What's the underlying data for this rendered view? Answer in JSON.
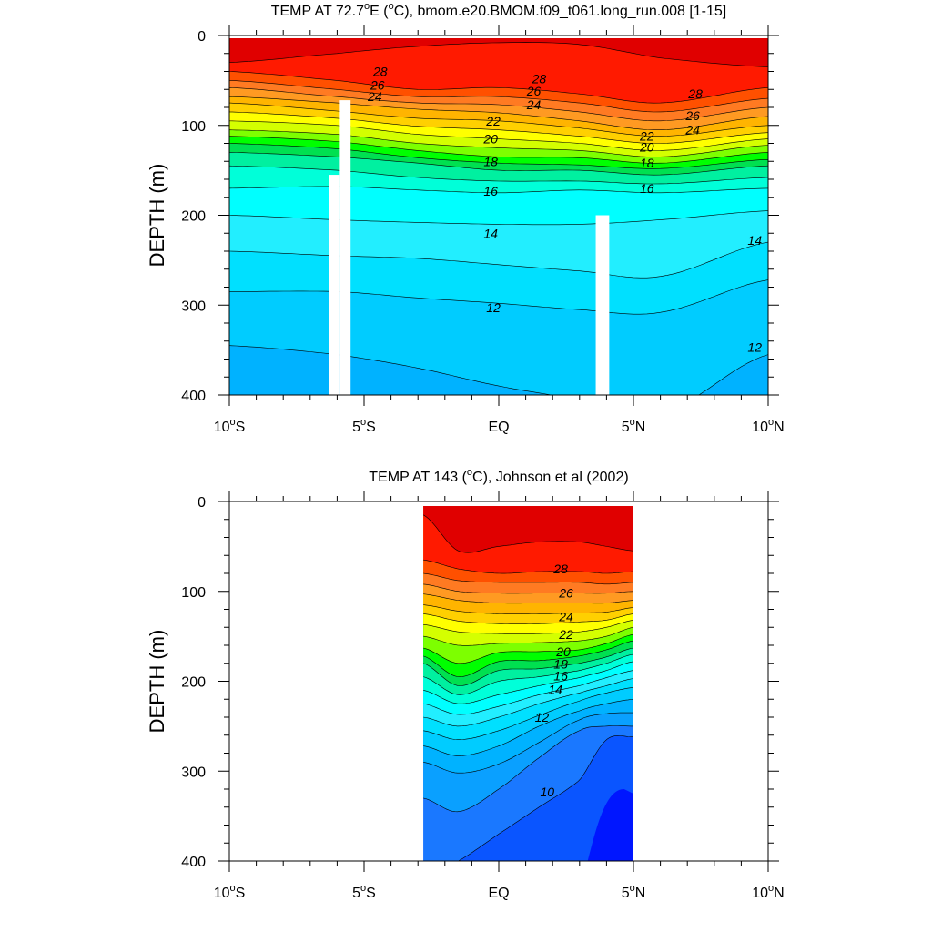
{
  "chart_data": [
    {
      "type": "contour",
      "title_main": "TEMP AT  72.7",
      "title_deg": "o",
      "title_rest": "E (",
      "title_unit_deg": "o",
      "title_tail": "C), bmom.e20.BMOM.f09_t061.long_run.008 [1-15]",
      "ylabel": "DEPTH (m)",
      "xlim": [
        -10,
        10
      ],
      "ylim": [
        400,
        0
      ],
      "x_ticks": [
        {
          "value": -10,
          "num": "10",
          "hemi": "S"
        },
        {
          "value": -5,
          "num": "5",
          "hemi": "S"
        },
        {
          "value": 0,
          "num": "EQ",
          "hemi": ""
        },
        {
          "value": 5,
          "num": "5",
          "hemi": "N"
        },
        {
          "value": 10,
          "num": "10",
          "hemi": "N"
        }
      ],
      "y_ticks": [
        "0",
        "100",
        "200",
        "300",
        "400"
      ],
      "y_tick_values": [
        0,
        100,
        200,
        300,
        400
      ],
      "data_extent_lat": [
        -10,
        10
      ],
      "masked_columns": [
        {
          "lat_range": [
            -6.3,
            -5.9
          ],
          "depth_from": 155
        },
        {
          "lat_range": [
            -5.9,
            -5.5
          ],
          "depth_from": 72
        },
        {
          "lat_range": [
            3.6,
            4.1
          ],
          "depth_from": 200
        }
      ],
      "x_knots": [
        -10,
        -6,
        -3,
        0,
        3,
        6,
        10
      ],
      "contour_levels": [
        11,
        12,
        13,
        14,
        15,
        16,
        17,
        18,
        19,
        20,
        21,
        22,
        23,
        24,
        25,
        26,
        27,
        28,
        29
      ],
      "isotherm_depths": {
        "29": [
          30,
          20,
          12,
          8,
          10,
          25,
          35
        ],
        "28": [
          40,
          50,
          60,
          58,
          65,
          75,
          58
        ],
        "27": [
          50,
          60,
          68,
          68,
          75,
          85,
          70
        ],
        "26": [
          58,
          68,
          75,
          77,
          85,
          95,
          80
        ],
        "25": [
          68,
          75,
          82,
          86,
          95,
          105,
          90
        ],
        "24": [
          75,
          84,
          92,
          95,
          103,
          112,
          100
        ],
        "23": [
          85,
          92,
          101,
          105,
          112,
          120,
          108
        ],
        "22": [
          95,
          100,
          110,
          115,
          120,
          128,
          115
        ],
        "21": [
          105,
          110,
          120,
          125,
          128,
          135,
          122
        ],
        "20": [
          112,
          118,
          128,
          135,
          136,
          142,
          130
        ],
        "19": [
          120,
          126,
          136,
          142,
          144,
          148,
          138
        ],
        "18": [
          130,
          135,
          142,
          150,
          150,
          155,
          145
        ],
        "17": [
          145,
          150,
          158,
          162,
          162,
          165,
          158
        ],
        "16": [
          170,
          168,
          172,
          175,
          172,
          175,
          170
        ],
        "15": [
          200,
          205,
          208,
          210,
          210,
          205,
          195
        ],
        "14": [
          240,
          245,
          248,
          255,
          262,
          268,
          230
        ],
        "13": [
          285,
          285,
          292,
          298,
          305,
          308,
          272
        ],
        "12": [
          345,
          355,
          370,
          390,
          405,
          420,
          355
        ],
        "11": [
          410,
          420,
          440,
          460,
          470,
          480,
          440
        ]
      },
      "line_labels": [
        {
          "level": "28",
          "lat": -4.4,
          "depth": 40
        },
        {
          "level": "26",
          "lat": -4.5,
          "depth": 55
        },
        {
          "level": "24",
          "lat": -4.6,
          "depth": 68
        },
        {
          "level": "28",
          "lat": 1.5,
          "depth": 48
        },
        {
          "level": "26",
          "lat": 1.3,
          "depth": 62
        },
        {
          "level": "24",
          "lat": 1.3,
          "depth": 77
        },
        {
          "level": "22",
          "lat": -0.2,
          "depth": 95
        },
        {
          "level": "20",
          "lat": -0.3,
          "depth": 115
        },
        {
          "level": "18",
          "lat": -0.3,
          "depth": 140
        },
        {
          "level": "16",
          "lat": -0.3,
          "depth": 173
        },
        {
          "level": "14",
          "lat": -0.3,
          "depth": 220
        },
        {
          "level": "12",
          "lat": -0.2,
          "depth": 303
        },
        {
          "level": "28",
          "lat": 7.3,
          "depth": 65
        },
        {
          "level": "26",
          "lat": 7.2,
          "depth": 89
        },
        {
          "level": "24",
          "lat": 7.2,
          "depth": 105
        },
        {
          "level": "22",
          "lat": 5.5,
          "depth": 112
        },
        {
          "level": "20",
          "lat": 5.5,
          "depth": 124
        },
        {
          "level": "18",
          "lat": 5.5,
          "depth": 142
        },
        {
          "level": "16",
          "lat": 5.5,
          "depth": 170
        },
        {
          "level": "14",
          "lat": 9.5,
          "depth": 228
        },
        {
          "level": "12",
          "lat": 9.5,
          "depth": 347
        }
      ]
    },
    {
      "type": "contour",
      "title_main": "TEMP AT 143 (",
      "title_deg": "",
      "title_rest": "",
      "title_unit_deg": "o",
      "title_tail": "C), Johnson et al (2002)",
      "ylabel": "DEPTH (m)",
      "xlim": [
        -10,
        10
      ],
      "ylim": [
        400,
        0
      ],
      "x_ticks": [
        {
          "value": -10,
          "num": "10",
          "hemi": "S"
        },
        {
          "value": -5,
          "num": "5",
          "hemi": "S"
        },
        {
          "value": 0,
          "num": "EQ",
          "hemi": ""
        },
        {
          "value": 5,
          "num": "5",
          "hemi": "N"
        },
        {
          "value": 10,
          "num": "10",
          "hemi": "N"
        }
      ],
      "y_ticks": [
        "0",
        "100",
        "200",
        "300",
        "400"
      ],
      "y_tick_values": [
        0,
        100,
        200,
        300,
        400
      ],
      "data_extent_lat": [
        -2.8,
        5
      ],
      "masked_columns": [],
      "x_knots": [
        -2.8,
        -1.5,
        0,
        1.5,
        3,
        4,
        5
      ],
      "contour_levels": [
        9,
        10,
        11,
        12,
        13,
        14,
        15,
        16,
        17,
        18,
        19,
        20,
        21,
        22,
        23,
        24,
        25,
        26,
        27,
        28,
        29
      ],
      "isotherm_depths": {
        "29": [
          15,
          55,
          50,
          45,
          45,
          50,
          55
        ],
        "28": [
          65,
          75,
          80,
          78,
          78,
          80,
          78
        ],
        "27": [
          80,
          88,
          90,
          90,
          90,
          92,
          90
        ],
        "26": [
          92,
          100,
          102,
          102,
          102,
          102,
          100
        ],
        "25": [
          103,
          110,
          113,
          113,
          113,
          113,
          110
        ],
        "24": [
          115,
          122,
          125,
          125,
          124,
          123,
          118
        ],
        "23": [
          125,
          133,
          136,
          136,
          134,
          132,
          125
        ],
        "22": [
          137,
          145,
          147,
          147,
          145,
          140,
          132
        ],
        "21": [
          150,
          160,
          158,
          157,
          155,
          150,
          140
        ],
        "20": [
          163,
          180,
          168,
          167,
          165,
          158,
          148
        ],
        "19": [
          172,
          195,
          178,
          177,
          172,
          165,
          155
        ],
        "18": [
          180,
          205,
          188,
          186,
          180,
          173,
          163
        ],
        "17": [
          195,
          215,
          200,
          195,
          188,
          180,
          170
        ],
        "16": [
          210,
          225,
          215,
          205,
          196,
          188,
          178
        ],
        "15": [
          225,
          237,
          228,
          215,
          205,
          196,
          188
        ],
        "14": [
          240,
          250,
          240,
          225,
          213,
          205,
          197
        ],
        "13": [
          255,
          265,
          255,
          238,
          222,
          213,
          207
        ],
        "12": [
          272,
          283,
          272,
          250,
          233,
          225,
          220
        ],
        "11": [
          290,
          302,
          292,
          268,
          243,
          236,
          235
        ],
        "10": [
          330,
          345,
          320,
          285,
          255,
          250,
          250
        ],
        "9": [
          420,
          400,
          370,
          340,
          310,
          265,
          262
        ]
      },
      "deep_core": {
        "level": "8",
        "lat_from": 3.3,
        "depth_from": 320
      },
      "line_labels": [
        {
          "level": "28",
          "lat": 2.3,
          "depth": 75
        },
        {
          "level": "26",
          "lat": 2.5,
          "depth": 102
        },
        {
          "level": "24",
          "lat": 2.5,
          "depth": 128
        },
        {
          "level": "22",
          "lat": 2.5,
          "depth": 148
        },
        {
          "level": "20",
          "lat": 2.4,
          "depth": 167
        },
        {
          "level": "18",
          "lat": 2.3,
          "depth": 181
        },
        {
          "level": "16",
          "lat": 2.3,
          "depth": 194
        },
        {
          "level": "14",
          "lat": 2.1,
          "depth": 209
        },
        {
          "level": "12",
          "lat": 1.6,
          "depth": 240
        },
        {
          "level": "10",
          "lat": 1.8,
          "depth": 323
        }
      ]
    }
  ],
  "colors": {
    "level_fills": {
      "8": "#0016ff",
      "9": "#0a55ff",
      "10": "#1a78ff",
      "11": "#0aa0ff",
      "12": "#00b2ff",
      "13": "#00ccff",
      "14": "#00e0ff",
      "15": "#22eeff",
      "16": "#00ffff",
      "17": "#00ffd9",
      "18": "#00f0a0",
      "19": "#00e050",
      "20": "#00ff00",
      "21": "#7dff00",
      "22": "#d4ff00",
      "23": "#ffff00",
      "24": "#ffd000",
      "25": "#ffb400",
      "26": "#ff9a22",
      "27": "#ff7a22",
      "28": "#ff5000",
      "29": "#ff1a00",
      "30": "#e00000"
    }
  }
}
